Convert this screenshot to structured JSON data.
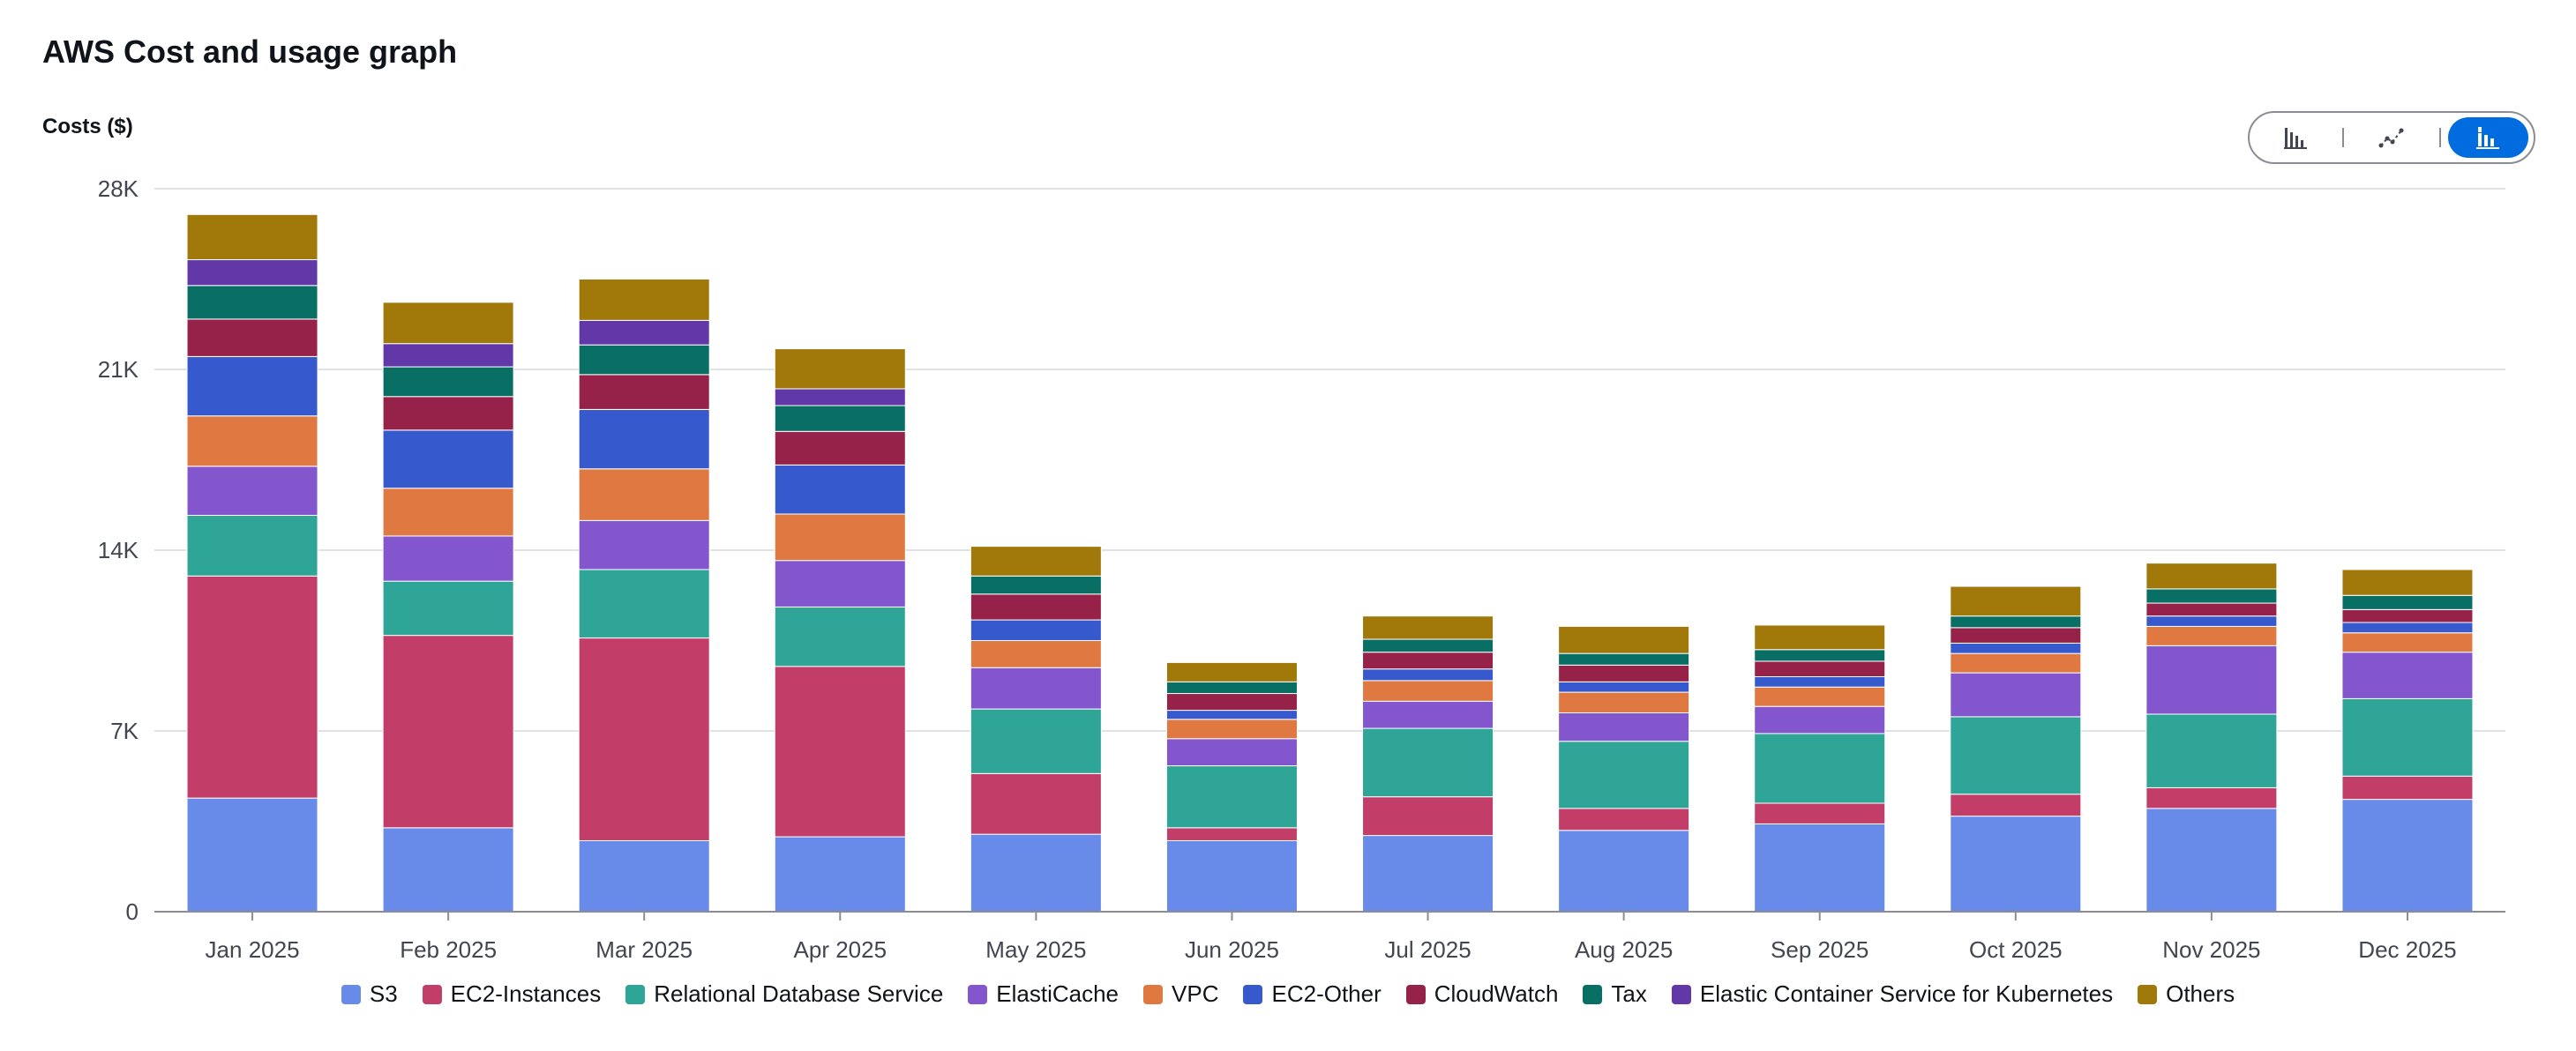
{
  "page": {
    "title": "AWS Cost and usage graph",
    "ylabel": "Costs ($)"
  },
  "toggle": {
    "options": [
      {
        "icon": "bar-chart-icon",
        "active": false
      },
      {
        "icon": "line-chart-icon",
        "active": false
      },
      {
        "icon": "stacked-bar-chart-icon",
        "active": true
      }
    ]
  },
  "chart_data": {
    "type": "bar",
    "stacked": true,
    "title": "AWS Cost and usage graph",
    "ylabel": "Costs ($)",
    "xlabel": "",
    "ylim": [
      0,
      28000
    ],
    "yticks": [
      0,
      7000,
      14000,
      21000,
      28000
    ],
    "ytick_labels": [
      "0",
      "7K",
      "14K",
      "21K",
      "28K"
    ],
    "grid": true,
    "legend_position": "bottom",
    "categories": [
      "Jan 2025",
      "Feb 2025",
      "Mar 2025",
      "Apr 2025",
      "May 2025",
      "Jun 2025",
      "Jul 2025",
      "Aug 2025",
      "Sep 2025",
      "Oct 2025",
      "Nov 2025",
      "Dec 2025"
    ],
    "series": [
      {
        "name": "S3",
        "color": "#688ae8",
        "values": [
          4400,
          3250,
          2750,
          2900,
          3000,
          2750,
          2950,
          3150,
          3400,
          3700,
          4000,
          4350
        ]
      },
      {
        "name": "EC2-Instances",
        "color": "#c33d69",
        "values": [
          8600,
          7450,
          7850,
          6600,
          2350,
          500,
          1500,
          850,
          800,
          850,
          800,
          900
        ]
      },
      {
        "name": "Relational Database Service",
        "color": "#2ea597",
        "values": [
          2350,
          2100,
          2650,
          2300,
          2500,
          2400,
          2650,
          2600,
          2700,
          3000,
          2850,
          3000
        ]
      },
      {
        "name": "ElastiCache",
        "color": "#8456ce",
        "values": [
          1900,
          1750,
          1900,
          1800,
          1600,
          1050,
          1050,
          1100,
          1050,
          1700,
          2650,
          1800
        ]
      },
      {
        "name": "VPC",
        "color": "#e07941",
        "values": [
          1950,
          1850,
          2000,
          1800,
          1050,
          750,
          800,
          800,
          750,
          750,
          750,
          750
        ]
      },
      {
        "name": "EC2-Other",
        "color": "#3759ce",
        "values": [
          2300,
          2250,
          2300,
          1900,
          800,
          350,
          450,
          400,
          400,
          400,
          400,
          400
        ]
      },
      {
        "name": "CloudWatch",
        "color": "#962249",
        "values": [
          1450,
          1300,
          1350,
          1300,
          1000,
          650,
          650,
          650,
          600,
          600,
          500,
          500
        ]
      },
      {
        "name": "Tax",
        "color": "#096f64",
        "values": [
          1300,
          1150,
          1150,
          1000,
          700,
          450,
          500,
          450,
          450,
          450,
          550,
          550
        ]
      },
      {
        "name": "Elastic Container Service for Kubernetes",
        "color": "#6237a7",
        "values": [
          1000,
          900,
          950,
          650,
          0,
          0,
          0,
          0,
          0,
          0,
          0,
          0
        ]
      },
      {
        "name": "Others",
        "color": "#a1790b",
        "values": [
          1750,
          1600,
          1600,
          1550,
          1150,
          750,
          900,
          1050,
          950,
          1150,
          1000,
          1000
        ]
      }
    ]
  }
}
